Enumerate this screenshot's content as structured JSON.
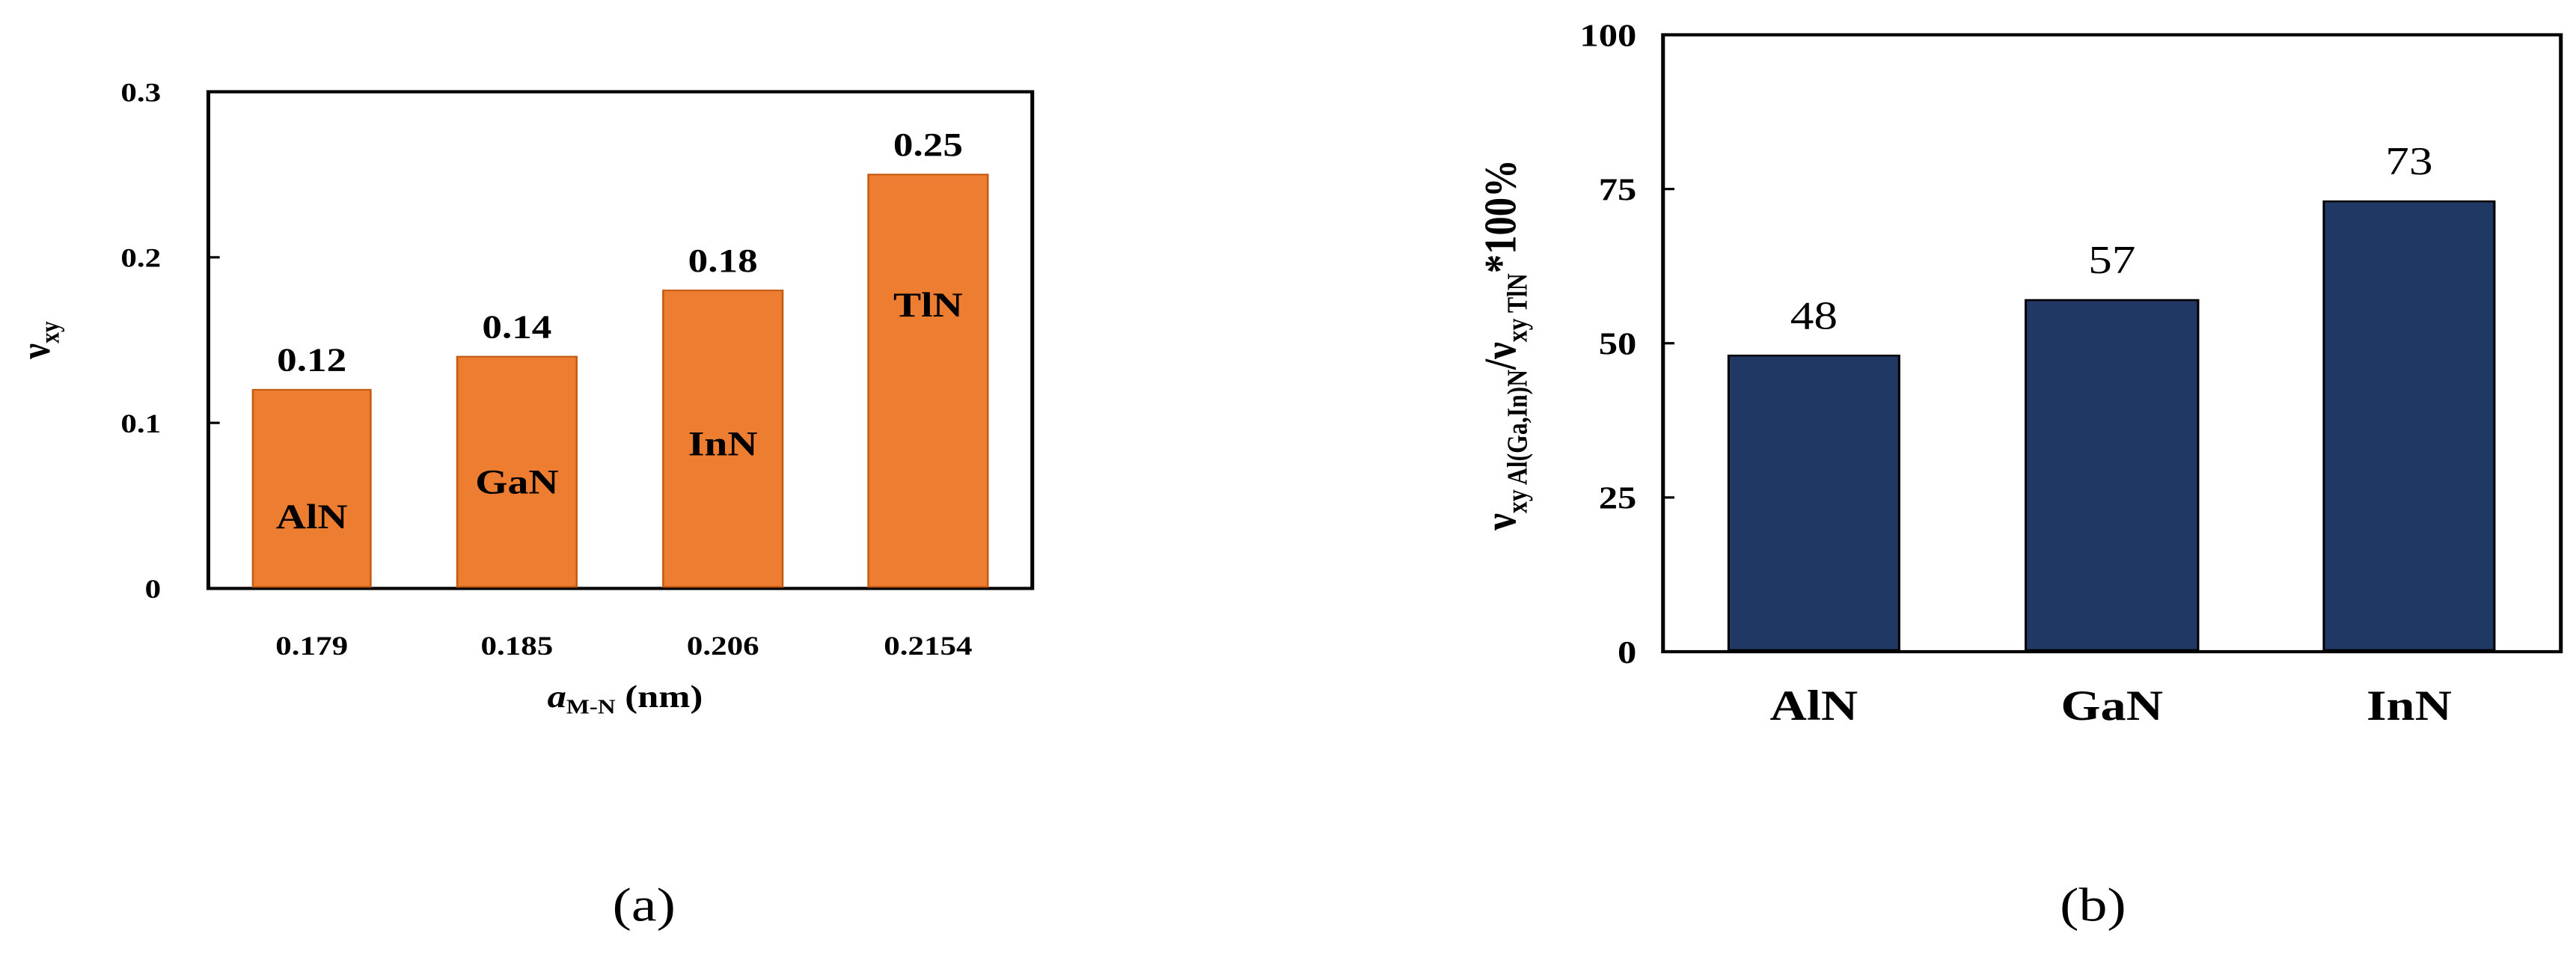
{
  "chart_data": [
    {
      "type": "bar",
      "panel_label": "(a)",
      "categories": [
        "0.179",
        "0.185",
        "0.206",
        "0.2154"
      ],
      "bar_labels": [
        "AlN",
        "GaN",
        "InN",
        "TlN"
      ],
      "values": [
        0.12,
        0.14,
        0.18,
        0.25
      ],
      "data_labels": [
        "0.12",
        "0.14",
        "0.18",
        "0.25"
      ],
      "ylabel_main": "ν",
      "ylabel_sub": "xy",
      "xlabel_main": "a",
      "xlabel_sub": "M-N",
      "xlabel_unit": " (nm)",
      "ylim": [
        0,
        0.3
      ],
      "yticks": [
        "0",
        "0.1",
        "0.2",
        "0.3"
      ],
      "color": "#ED7D31"
    },
    {
      "type": "bar",
      "panel_label": "(b)",
      "categories": [
        "AlN",
        "GaN",
        "InN"
      ],
      "values": [
        48,
        57,
        73
      ],
      "data_labels": [
        "48",
        "57",
        "73"
      ],
      "ylabel_parts": [
        "ν",
        "xy Al(Ga,In)N",
        "/ν",
        "xy TlN",
        "*100%"
      ],
      "ylim": [
        0,
        100
      ],
      "yticks": [
        "0",
        "25",
        "50",
        "75",
        "100"
      ],
      "color": "#203864"
    }
  ]
}
